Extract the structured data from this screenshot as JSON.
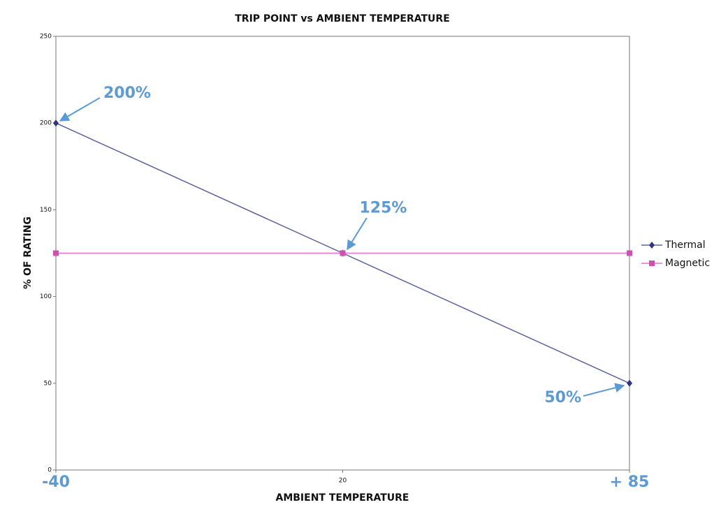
{
  "chart_data": {
    "type": "line",
    "title": "TRIP POINT vs AMBIENT TEMPERATURE",
    "x_label": "AMBIENT TEMPERATURE",
    "y_label": "% OF RATING",
    "categories": [
      "-40",
      "20",
      "+ 85"
    ],
    "series": [
      {
        "name": "Thermal",
        "color": "#5a62a0",
        "marker_color": "#2e3582",
        "marker": "diamond",
        "values": [
          200,
          125,
          50
        ],
        "value_labels": [
          "200%",
          "125%",
          "50%"
        ]
      },
      {
        "name": "Magnetic",
        "color": "#e070c8",
        "marker_color": "#d050b0",
        "marker": "square",
        "values": [
          125,
          125,
          125
        ]
      }
    ],
    "ylim": [
      0,
      250
    ],
    "yticks": [
      0,
      50,
      100,
      150,
      200,
      250
    ],
    "grid": false,
    "legend": "right"
  }
}
